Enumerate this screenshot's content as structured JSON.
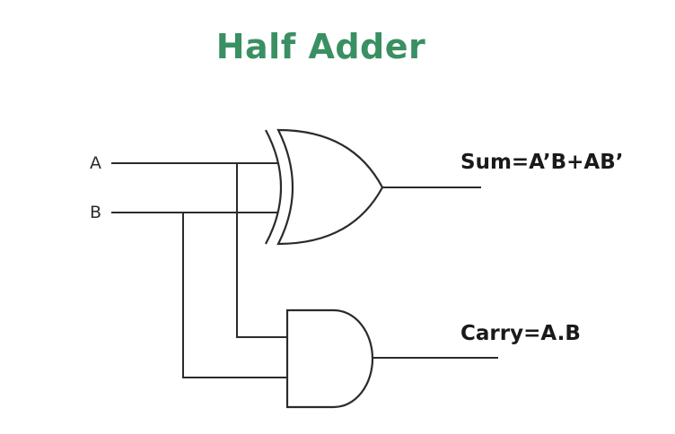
{
  "title": "Half Adder",
  "colors": {
    "title": "#3a8f63",
    "line": "#2b2b2b"
  },
  "inputs": {
    "a_label": "A",
    "b_label": "B"
  },
  "outputs": {
    "sum_label": "Sum=A’B+AB’",
    "carry_label": "Carry=A.B"
  },
  "gates": {
    "xor": "xor-gate",
    "and": "and-gate"
  }
}
